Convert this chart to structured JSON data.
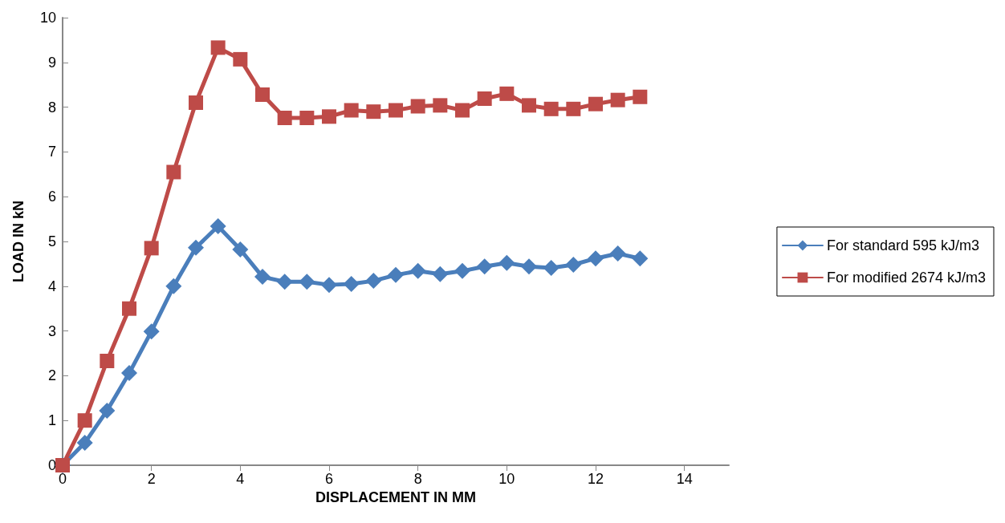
{
  "chart_data": {
    "type": "line",
    "xlabel": "DISPLACEMENT IN MM",
    "ylabel": "LOAD IN kN",
    "x": [
      0,
      0.5,
      1,
      1.5,
      2,
      2.5,
      3,
      3.5,
      4,
      4.5,
      5,
      5.5,
      6,
      6.5,
      7,
      7.5,
      8,
      8.5,
      9,
      9.5,
      10,
      10.5,
      11,
      11.5,
      12,
      12.5,
      13
    ],
    "series": [
      {
        "name": "For standard 595 kJ/m3",
        "color": "#4a7ebb",
        "marker": "diamond",
        "values": [
          0,
          0.5,
          1.22,
          2.06,
          2.99,
          4.0,
          4.86,
          5.34,
          4.82,
          4.21,
          4.1,
          4.1,
          4.03,
          4.05,
          4.12,
          4.25,
          4.34,
          4.27,
          4.34,
          4.44,
          4.52,
          4.44,
          4.41,
          4.48,
          4.62,
          4.73,
          4.62
        ]
      },
      {
        "name": "For modified 2674 kJ/m3",
        "color": "#be4b48",
        "marker": "square",
        "values": [
          0,
          1.0,
          2.33,
          3.5,
          4.85,
          6.55,
          8.1,
          9.33,
          9.07,
          8.28,
          7.76,
          7.76,
          7.79,
          7.93,
          7.9,
          7.93,
          8.02,
          8.04,
          7.93,
          8.19,
          8.3,
          8.04,
          7.96,
          7.96,
          8.07,
          8.16,
          8.23
        ]
      }
    ],
    "xlim": [
      0,
      15
    ],
    "xticks": [
      0,
      2,
      4,
      6,
      8,
      10,
      12,
      14
    ],
    "ylim": [
      0,
      10
    ],
    "yticks": [
      0,
      1,
      2,
      3,
      4,
      5,
      6,
      7,
      8,
      9,
      10
    ],
    "grid": false,
    "legend": "right",
    "line_style": "solid"
  }
}
